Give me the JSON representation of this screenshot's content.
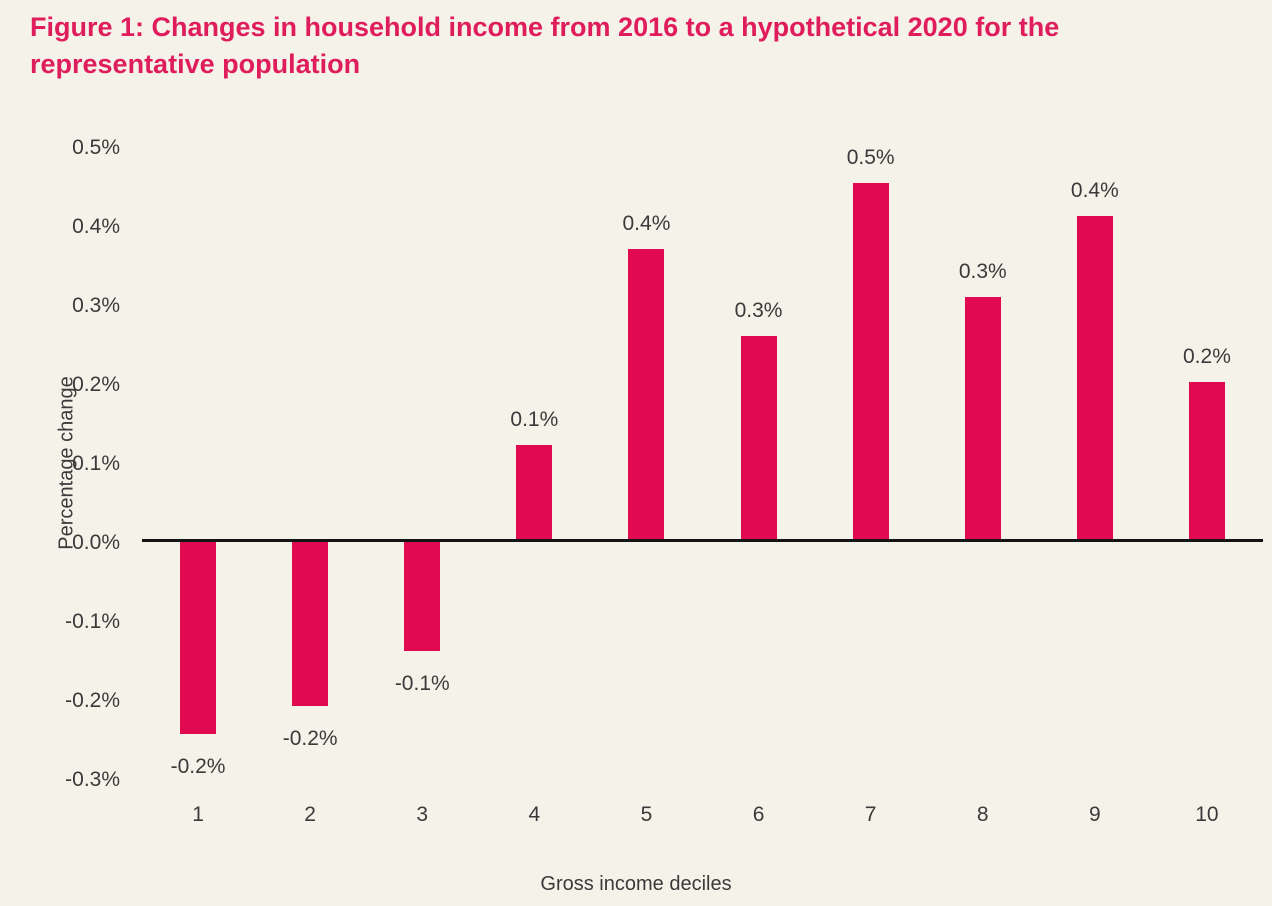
{
  "title": "Figure 1: Changes in household income from 2016 to a hypothetical 2020 for the representative population",
  "chart_data": {
    "type": "bar",
    "title": "Figure 1: Changes in household income from 2016 to a hypothetical 2020 for the representative population",
    "categories": [
      "1",
      "2",
      "3",
      "4",
      "5",
      "6",
      "7",
      "8",
      "9",
      "10"
    ],
    "values": [
      -0.245,
      -0.21,
      -0.14,
      0.12,
      0.368,
      0.258,
      0.452,
      0.308,
      0.41,
      0.2
    ],
    "bar_labels": [
      "-0.2%",
      "-0.2%",
      "-0.1%",
      "0.1%",
      "0.4%",
      "0.3%",
      "0.5%",
      "0.3%",
      "0.4%",
      "0.2%"
    ],
    "xlabel": "Gross income deciles",
    "ylabel": "Percentage change",
    "ylim": [
      -0.3,
      0.5
    ],
    "y_tick_labels": [
      "0.5%",
      "0.4%",
      "0.3%",
      "0.2%",
      "0.1%",
      "0.0%",
      "-0.1%",
      "-0.2%",
      "-0.3%"
    ],
    "y_tick_values": [
      0.5,
      0.4,
      0.3,
      0.2,
      0.1,
      0.0,
      -0.1,
      -0.2,
      -0.3
    ],
    "grid": false,
    "legend": "none",
    "bar_color": "#e10a52",
    "title_color": "#e01d5c",
    "background_color": "#f5f2e9",
    "text_color": "#3a3a3a",
    "axis_line_color": "#141414"
  }
}
